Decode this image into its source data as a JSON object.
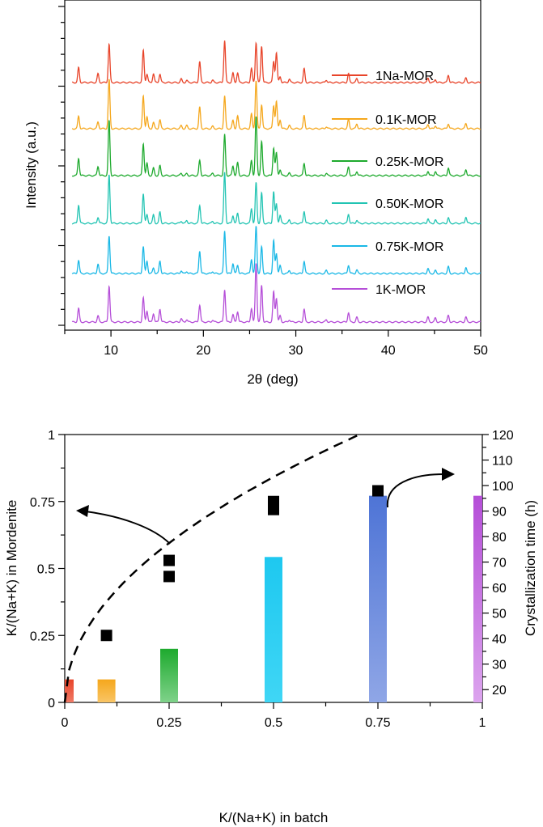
{
  "chart_data": [
    {
      "type": "line",
      "title": "",
      "xlabel": "2θ (deg)",
      "ylabel": "Intensity (a.u.)",
      "xlim": [
        5,
        50
      ],
      "xticks": [
        10,
        20,
        30,
        40,
        50
      ],
      "xtick_labels": [
        "10",
        "20",
        "30",
        "40",
        "50"
      ],
      "legend_position": "right",
      "peaks": [
        {
          "pos": 6.5,
          "h": 0.32
        },
        {
          "pos": 8.6,
          "h": 0.16
        },
        {
          "pos": 9.8,
          "h": 0.92
        },
        {
          "pos": 13.5,
          "h": 0.55
        },
        {
          "pos": 13.9,
          "h": 0.22
        },
        {
          "pos": 14.6,
          "h": 0.15
        },
        {
          "pos": 15.3,
          "h": 0.22
        },
        {
          "pos": 17.6,
          "h": 0.06
        },
        {
          "pos": 18.2,
          "h": 0.05
        },
        {
          "pos": 19.6,
          "h": 0.38
        },
        {
          "pos": 21.0,
          "h": 0.05
        },
        {
          "pos": 22.3,
          "h": 0.85
        },
        {
          "pos": 23.2,
          "h": 0.18
        },
        {
          "pos": 23.7,
          "h": 0.22
        },
        {
          "pos": 25.2,
          "h": 0.25
        },
        {
          "pos": 25.7,
          "h": 1.0
        },
        {
          "pos": 26.3,
          "h": 0.62
        },
        {
          "pos": 27.6,
          "h": 0.55
        },
        {
          "pos": 27.9,
          "h": 0.5
        },
        {
          "pos": 28.3,
          "h": 0.15
        },
        {
          "pos": 29.3,
          "h": 0.06
        },
        {
          "pos": 30.9,
          "h": 0.32
        },
        {
          "pos": 33.3,
          "h": 0.05
        },
        {
          "pos": 35.7,
          "h": 0.18
        },
        {
          "pos": 36.6,
          "h": 0.08
        },
        {
          "pos": 44.3,
          "h": 0.08
        },
        {
          "pos": 45.1,
          "h": 0.07
        },
        {
          "pos": 46.5,
          "h": 0.13
        },
        {
          "pos": 48.4,
          "h": 0.11
        }
      ],
      "series": [
        {
          "name": "1Na-MOR",
          "color": "#e8442a"
        },
        {
          "name": "0.1K-MOR",
          "color": "#f5a71c"
        },
        {
          "name": "0.25K-MOR",
          "color": "#1eaa2e"
        },
        {
          "name": "0.50K-MOR",
          "color": "#22c4b3"
        },
        {
          "name": "0.75K-MOR",
          "color": "#1ab8e6"
        },
        {
          "name": "1K-MOR",
          "color": "#b54ed8"
        }
      ]
    },
    {
      "type": "bar",
      "title": "",
      "xlabel": "K/(Na+K) in batch",
      "ylabel": "K/(Na+K) in Mordenite",
      "y2label": "Crystallization time (h)",
      "xlim": [
        0,
        1
      ],
      "ylim": [
        0,
        1
      ],
      "y2lim": [
        15,
        120
      ],
      "xticks": [
        0,
        0.25,
        0.5,
        0.75,
        1
      ],
      "xtick_labels": [
        "0",
        "0.25",
        "0.5",
        "0.75",
        "1"
      ],
      "yticks": [
        0,
        0.25,
        0.5,
        0.75,
        1
      ],
      "ytick_labels": [
        "0",
        "0.25",
        "0.5",
        "0.75",
        "1"
      ],
      "y2ticks": [
        20,
        30,
        40,
        50,
        60,
        70,
        80,
        90,
        100,
        110,
        120
      ],
      "y2tick_labels": [
        "20",
        "30",
        "40",
        "50",
        "60",
        "70",
        "80",
        "90",
        "100",
        "110",
        "120"
      ],
      "bars": [
        {
          "x": 0.0,
          "time": 24,
          "color_top": "#e8442a",
          "color_bottom": "#f07a66"
        },
        {
          "x": 0.1,
          "time": 24,
          "color_top": "#f5a71c",
          "color_bottom": "#f9c566"
        },
        {
          "x": 0.25,
          "time": 36,
          "color_top": "#1eaa2e",
          "color_bottom": "#7fd28a"
        },
        {
          "x": 0.5,
          "time": 72,
          "color_top": "#1ec8f0",
          "color_bottom": "#3fd6f5"
        },
        {
          "x": 0.75,
          "time": 96,
          "color_top": "#4e74d6",
          "color_bottom": "#8fa6e6"
        },
        {
          "x": 1.0,
          "time": 96,
          "color_top": "#b54ed8",
          "color_bottom": "#dca4ee"
        }
      ],
      "points": [
        {
          "x": 0.1,
          "y": 0.25
        },
        {
          "x": 0.25,
          "y": 0.53
        },
        {
          "x": 0.25,
          "y": 0.47
        },
        {
          "x": 0.5,
          "y": 0.75
        },
        {
          "x": 0.5,
          "y": 0.72
        },
        {
          "x": 0.75,
          "y": 0.79
        }
      ],
      "fit_curve": {
        "type": "sqrt",
        "a": 1.19,
        "style": "dashed"
      },
      "annotations": [
        {
          "kind": "arrow-left",
          "description": "points refer to left axis"
        },
        {
          "kind": "arrow-right",
          "description": "bars refer to right axis"
        }
      ]
    }
  ]
}
